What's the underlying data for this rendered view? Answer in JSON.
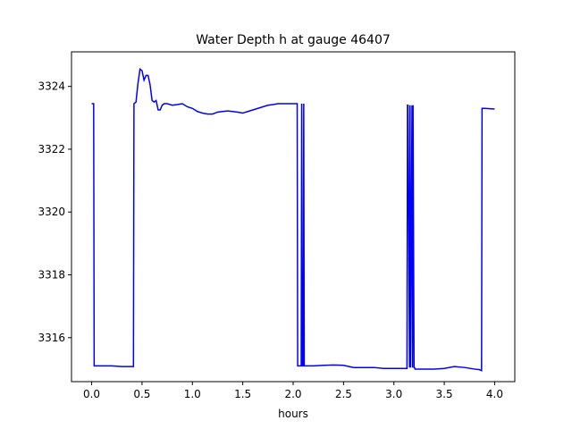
{
  "chart_data": {
    "type": "line",
    "title": "Water Depth h at gauge 46407",
    "xlabel": "hours",
    "ylabel": "",
    "xlim": [
      -0.2,
      4.2
    ],
    "ylim": [
      3314.6,
      3325.1
    ],
    "xticks": [
      0.0,
      0.5,
      1.0,
      1.5,
      2.0,
      2.5,
      3.0,
      3.5,
      4.0
    ],
    "xtick_labels": [
      "0.0",
      "0.5",
      "1.0",
      "1.5",
      "2.0",
      "2.5",
      "3.0",
      "3.5",
      "4.0"
    ],
    "yticks": [
      3316,
      3318,
      3320,
      3322,
      3324
    ],
    "ytick_labels": [
      "3316",
      "3318",
      "3320",
      "3322",
      "3324"
    ],
    "grid": false,
    "series": [
      {
        "color": "#0000ff",
        "x": [
          0.0,
          0.02,
          0.025,
          0.1,
          0.2,
          0.3,
          0.35,
          0.4,
          0.415,
          0.42,
          0.44,
          0.46,
          0.48,
          0.5,
          0.52,
          0.54,
          0.56,
          0.58,
          0.6,
          0.62,
          0.64,
          0.66,
          0.68,
          0.7,
          0.72,
          0.75,
          0.8,
          0.85,
          0.9,
          0.95,
          1.0,
          1.05,
          1.1,
          1.15,
          1.2,
          1.25,
          1.3,
          1.35,
          1.4,
          1.45,
          1.5,
          1.55,
          1.6,
          1.65,
          1.7,
          1.75,
          1.8,
          1.85,
          1.9,
          1.95,
          2.0,
          2.04,
          2.045,
          2.05,
          2.08,
          2.085,
          2.09,
          2.1,
          2.105,
          2.11,
          2.2,
          2.3,
          2.4,
          2.5,
          2.6,
          2.7,
          2.8,
          2.9,
          3.0,
          3.05,
          3.1,
          3.13,
          3.135,
          3.14,
          3.155,
          3.16,
          3.165,
          3.18,
          3.185,
          3.19,
          3.2,
          3.205,
          3.21,
          3.3,
          3.4,
          3.5,
          3.6,
          3.7,
          3.8,
          3.85,
          3.87,
          3.875,
          3.88,
          3.9,
          4.0
        ],
        "y": [
          3323.45,
          3323.45,
          3315.1,
          3315.1,
          3315.1,
          3315.08,
          3315.08,
          3315.08,
          3315.08,
          3323.45,
          3323.5,
          3324.1,
          3324.55,
          3324.5,
          3324.2,
          3324.35,
          3324.35,
          3324.05,
          3323.55,
          3323.5,
          3323.55,
          3323.25,
          3323.25,
          3323.4,
          3323.45,
          3323.45,
          3323.4,
          3323.42,
          3323.45,
          3323.35,
          3323.3,
          3323.2,
          3323.15,
          3323.12,
          3323.12,
          3323.18,
          3323.2,
          3323.22,
          3323.2,
          3323.18,
          3323.15,
          3323.2,
          3323.25,
          3323.3,
          3323.35,
          3323.4,
          3323.42,
          3323.45,
          3323.45,
          3323.45,
          3323.45,
          3323.45,
          3315.1,
          3315.1,
          3315.1,
          3323.45,
          3315.1,
          3315.1,
          3323.45,
          3315.1,
          3315.1,
          3315.12,
          3315.13,
          3315.12,
          3315.05,
          3315.05,
          3315.05,
          3315.02,
          3315.02,
          3315.02,
          3315.02,
          3315.02,
          3323.4,
          3323.4,
          3315.05,
          3323.4,
          3315.05,
          3323.4,
          3315.05,
          3323.4,
          3315.05,
          3315.05,
          3315.0,
          3315.0,
          3315.0,
          3315.02,
          3315.08,
          3315.05,
          3315.0,
          3314.98,
          3314.95,
          3323.3,
          3323.3,
          3323.3,
          3323.28
        ]
      }
    ]
  }
}
